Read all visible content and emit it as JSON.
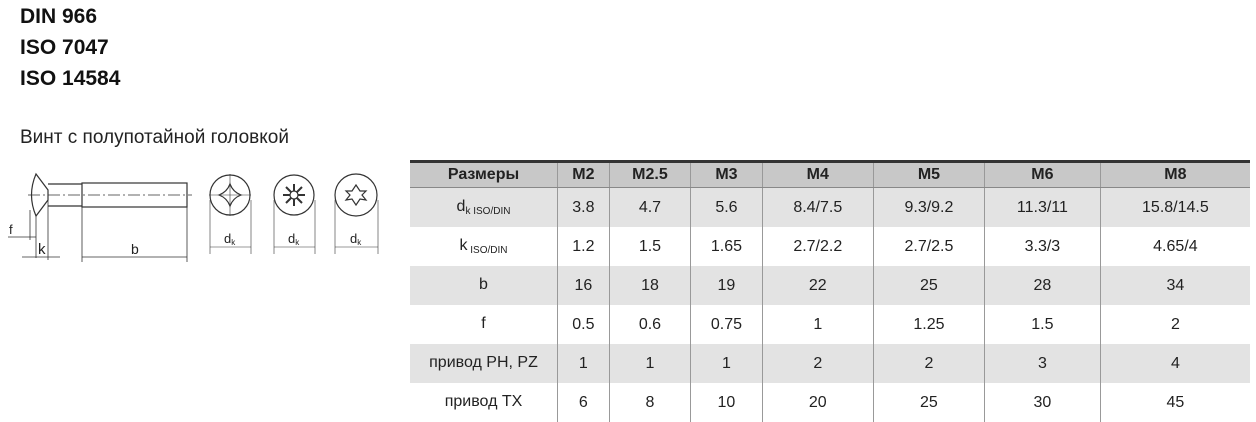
{
  "standards": [
    "DIN 966",
    "ISO 7047",
    "ISO 14584"
  ],
  "subtitle": "Винт с полупотайной головкой",
  "drawing": {
    "labels": {
      "f": "f",
      "k": "k",
      "b": "b",
      "dk": "d",
      "dk_sub": "k"
    },
    "drive_icons": [
      "phillips-drive-icon",
      "pozidriv-drive-icon",
      "torx-drive-icon"
    ]
  },
  "table": {
    "headers": [
      "Размеры",
      "M2",
      "M2.5",
      "M3",
      "M4",
      "M5",
      "M6",
      "M8"
    ],
    "rows": [
      {
        "label": "d",
        "label_sub": "k ISO/DIN",
        "values": [
          "3.8",
          "4.7",
          "5.6",
          "8.4/7.5",
          "9.3/9.2",
          "11.3/11",
          "15.8/14.5"
        ]
      },
      {
        "label": "k",
        "label_sub": " ISO/DIN",
        "values": [
          "1.2",
          "1.5",
          "1.65",
          "2.7/2.2",
          "2.7/2.5",
          "3.3/3",
          "4.65/4"
        ]
      },
      {
        "label": "b",
        "label_sub": "",
        "values": [
          "16",
          "18",
          "19",
          "22",
          "25",
          "28",
          "34"
        ]
      },
      {
        "label": "f",
        "label_sub": "",
        "values": [
          "0.5",
          "0.6",
          "0.75",
          "1",
          "1.25",
          "1.5",
          "2"
        ]
      },
      {
        "label": "привод PH, PZ",
        "label_sub": "",
        "values": [
          "1",
          "1",
          "1",
          "2",
          "2",
          "3",
          "4"
        ]
      },
      {
        "label": "привод TX",
        "label_sub": "",
        "values": [
          "6",
          "8",
          "10",
          "20",
          "25",
          "30",
          "45"
        ]
      }
    ]
  }
}
